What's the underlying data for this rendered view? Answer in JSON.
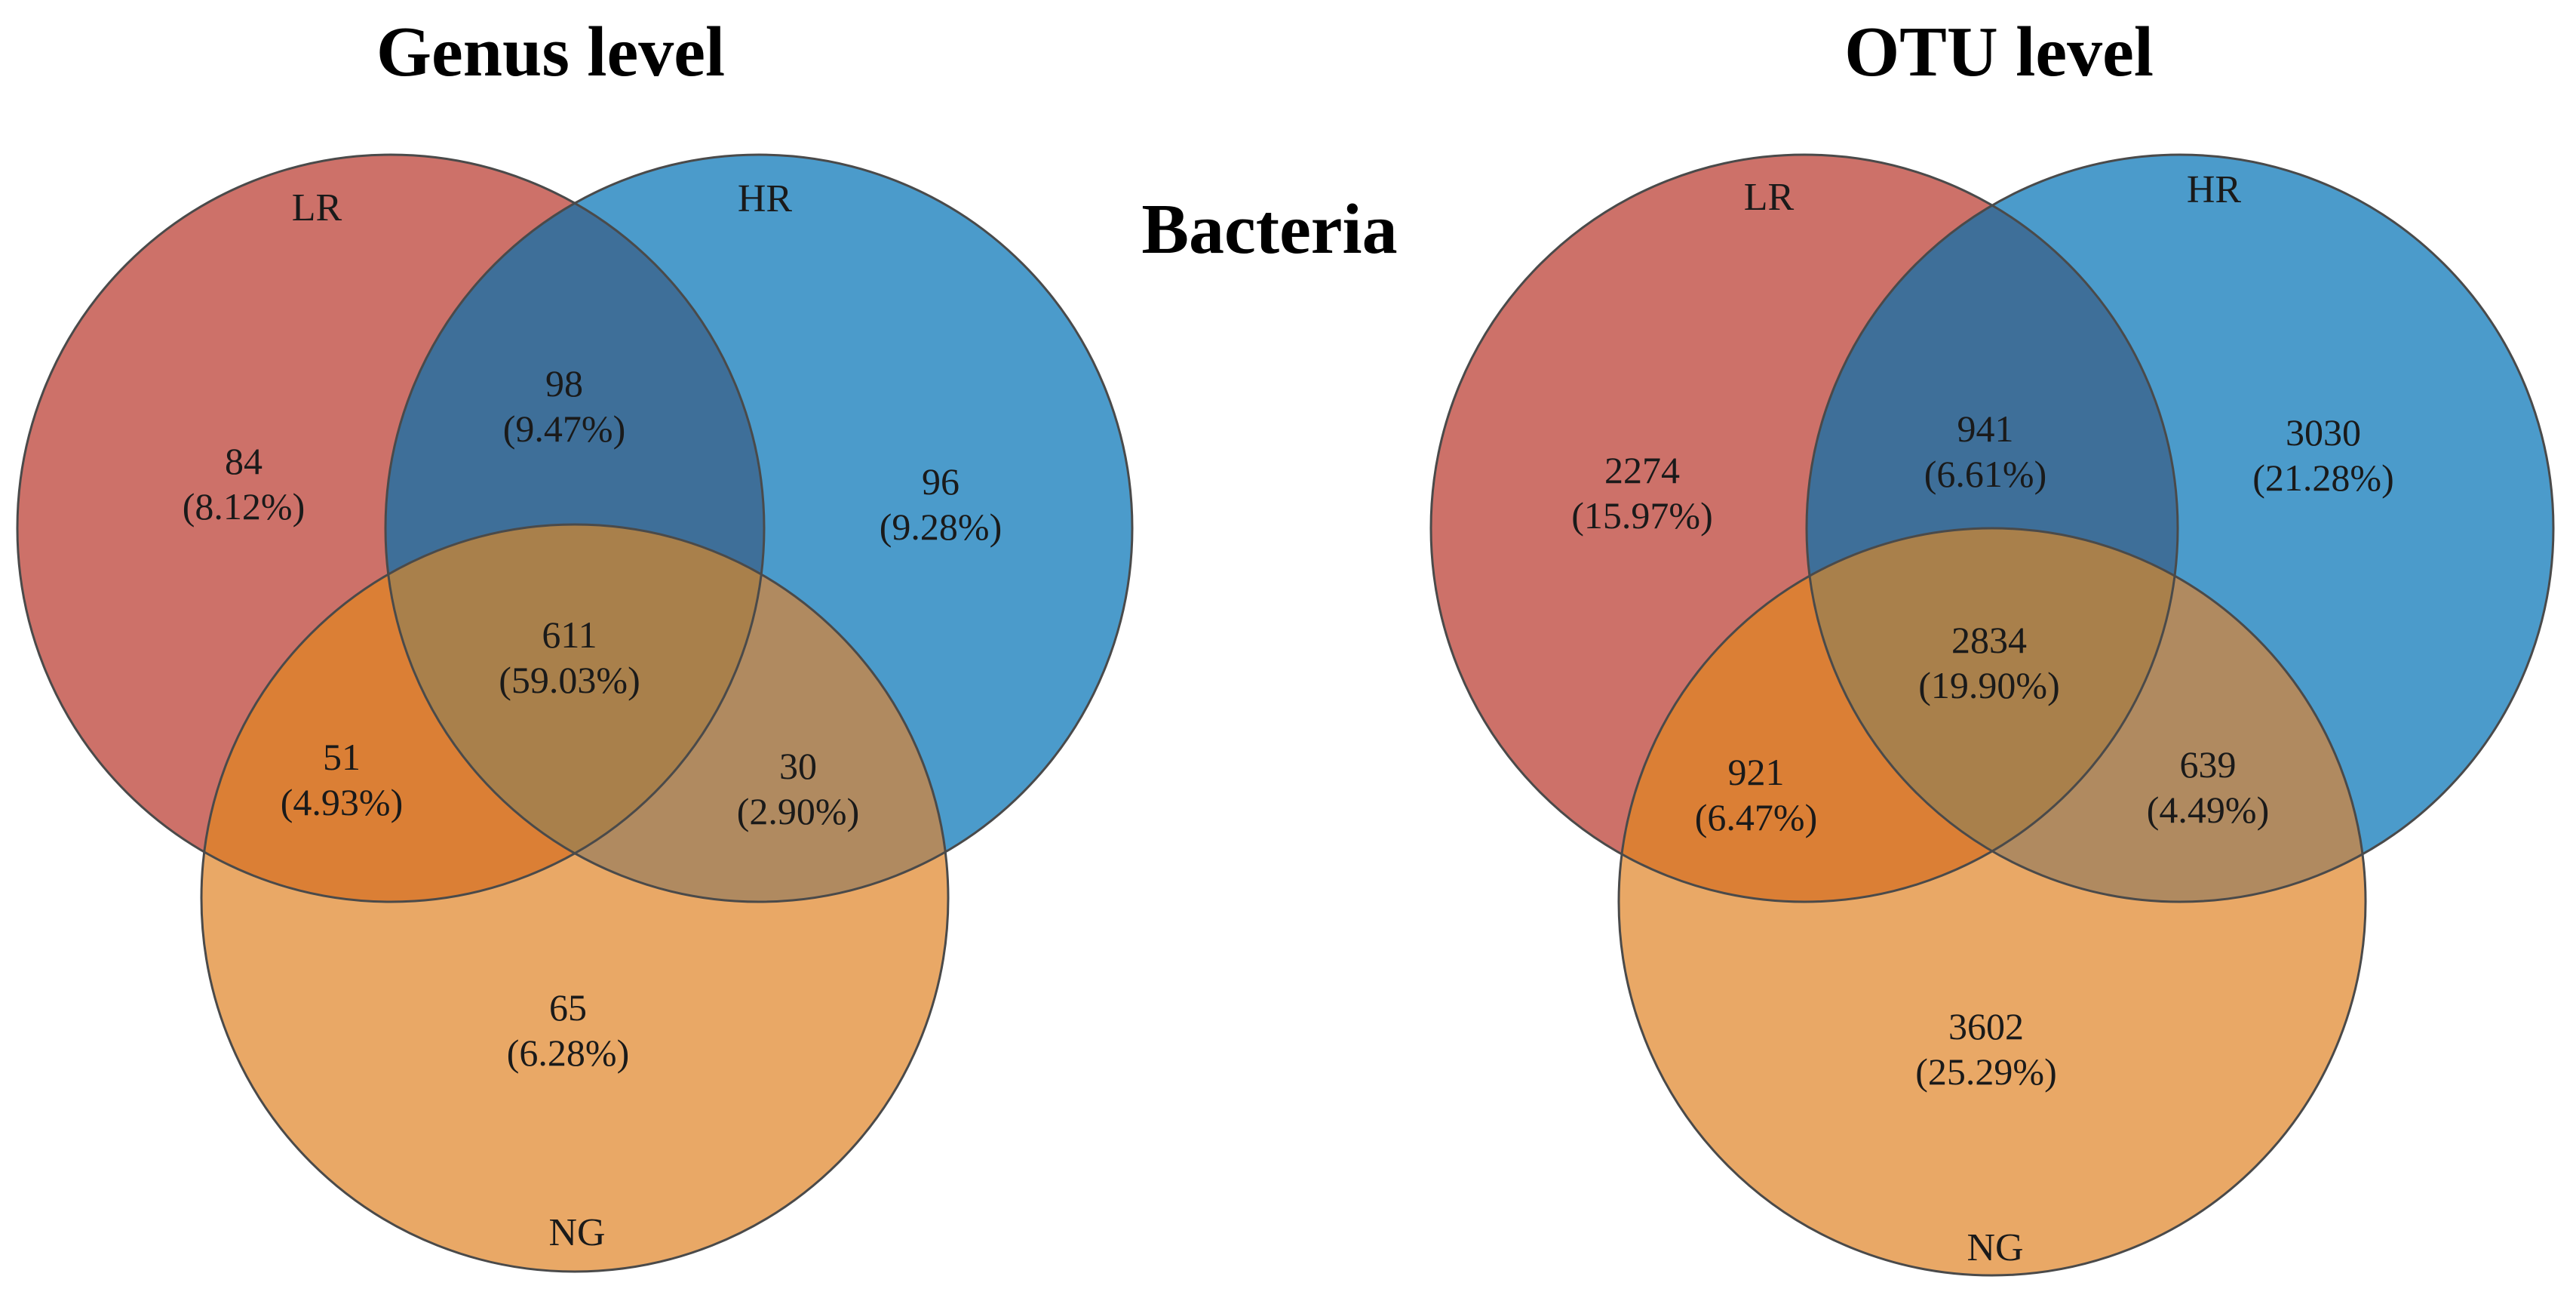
{
  "center_label": "Bacteria",
  "colors": {
    "LR": "#cd7169",
    "HR": "#4b9bcb",
    "NG": "#e9a866",
    "LR_HR": "#3e6f99",
    "LR_NG": "#db7f35",
    "HR_NG": "#b08a60",
    "LR_HR_NG": "#a9804b"
  },
  "diagrams": [
    {
      "title": "Genus level",
      "sets": {
        "LR": "LR",
        "HR": "HR",
        "NG": "NG"
      },
      "regions": {
        "LR_only": {
          "count": "84",
          "pct": "(8.12%)"
        },
        "HR_only": {
          "count": "96",
          "pct": "(9.28%)"
        },
        "NG_only": {
          "count": "65",
          "pct": "(6.28%)"
        },
        "LR_HR": {
          "count": "98",
          "pct": "(9.47%)"
        },
        "LR_NG": {
          "count": "51",
          "pct": "(4.93%)"
        },
        "HR_NG": {
          "count": "30",
          "pct": "(2.90%)"
        },
        "LR_HR_NG": {
          "count": "611",
          "pct": "(59.03%)"
        }
      }
    },
    {
      "title": "OTU level",
      "sets": {
        "LR": "LR",
        "HR": "HR",
        "NG": "NG"
      },
      "regions": {
        "LR_only": {
          "count": "2274",
          "pct": "(15.97%)"
        },
        "HR_only": {
          "count": "3030",
          "pct": "(21.28%)"
        },
        "NG_only": {
          "count": "3602",
          "pct": "(25.29%)"
        },
        "LR_HR": {
          "count": "941",
          "pct": "(6.61%)"
        },
        "LR_NG": {
          "count": "921",
          "pct": "(6.47%)"
        },
        "HR_NG": {
          "count": "639",
          "pct": "(4.49%)"
        },
        "LR_HR_NG": {
          "count": "2834",
          "pct": "(19.90%)"
        }
      }
    }
  ]
}
